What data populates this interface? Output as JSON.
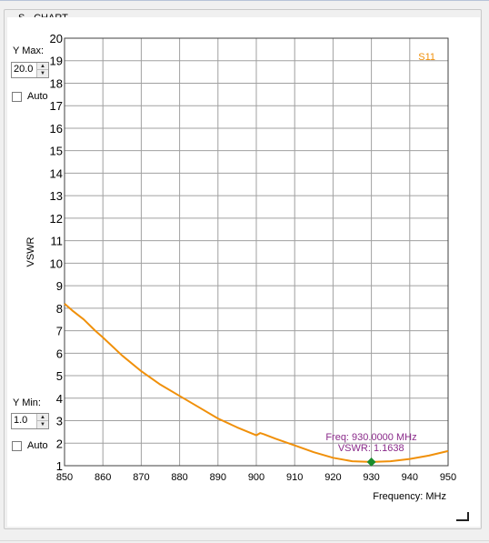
{
  "panel": {
    "title": "S - CHART",
    "y_max": {
      "label": "Y Max:",
      "value": "20.0",
      "auto_label": "Auto",
      "auto_checked": false
    },
    "y_min": {
      "label": "Y Min:",
      "value": "1.0",
      "auto_label": "Auto",
      "auto_checked": false
    }
  },
  "colors": {
    "trace": "#f0900a",
    "marker": "#1a8c2a",
    "readout": "#8a2a8a",
    "grid": "#a0a0a0"
  },
  "icons": {
    "spin_up": "arrow-up-icon",
    "spin_down": "arrow-down-icon",
    "resize": "resize-grip-icon"
  },
  "readout": {
    "freq": "Freq: 930.0000 MHz",
    "vswr": "VSWR: 1.1638"
  },
  "chart_data": {
    "type": "line",
    "title": "",
    "xlabel": "Frequency: MHz",
    "ylabel": "VSWR",
    "xlim": [
      850,
      950
    ],
    "ylim": [
      1,
      20
    ],
    "xticks": [
      850,
      860,
      870,
      880,
      890,
      900,
      910,
      920,
      930,
      940,
      950
    ],
    "yticks": [
      1,
      2,
      3,
      4,
      5,
      6,
      7,
      8,
      9,
      10,
      11,
      12,
      13,
      14,
      15,
      16,
      17,
      18,
      19,
      20
    ],
    "grid": true,
    "legend": "top-right",
    "series": [
      {
        "name": "S11",
        "x": [
          850,
          852,
          855,
          858,
          860,
          865,
          870,
          875,
          880,
          885,
          890,
          895,
          900,
          901,
          902,
          905,
          910,
          915,
          920,
          925,
          930,
          935,
          940,
          945,
          950
        ],
        "y": [
          8.2,
          7.9,
          7.5,
          7.0,
          6.7,
          5.9,
          5.2,
          4.6,
          4.1,
          3.6,
          3.1,
          2.7,
          2.35,
          2.45,
          2.4,
          2.2,
          1.9,
          1.6,
          1.35,
          1.2,
          1.1638,
          1.2,
          1.3,
          1.45,
          1.65
        ]
      }
    ],
    "marker": {
      "x": 930,
      "y": 1.1638
    }
  }
}
